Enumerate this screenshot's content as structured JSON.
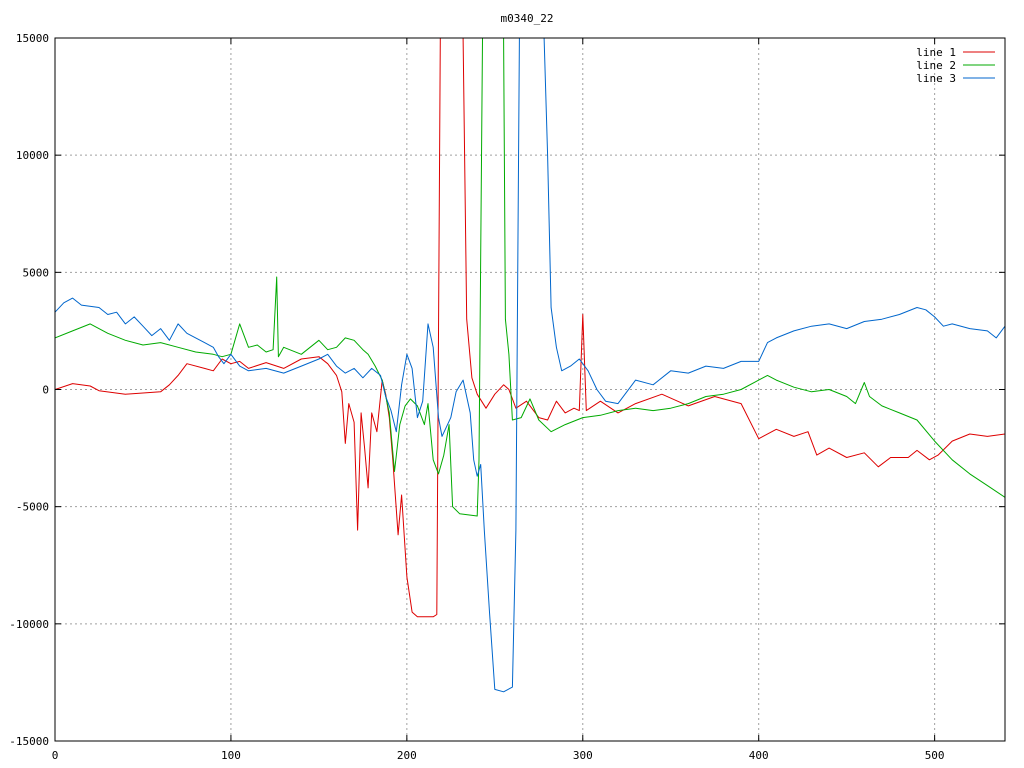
{
  "chart_data": {
    "type": "line",
    "title": "m0340_22",
    "xlabel": "",
    "ylabel": "",
    "xlim": [
      0,
      540
    ],
    "ylim": [
      -15000,
      15000
    ],
    "x_ticks": [
      0,
      100,
      200,
      300,
      400,
      500
    ],
    "y_ticks": [
      -15000,
      -10000,
      -5000,
      0,
      5000,
      10000,
      15000
    ],
    "x_tick_labels": [
      "0",
      "100",
      "200",
      "300",
      "400",
      "500"
    ],
    "y_tick_labels": [
      "-15000",
      "-10000",
      "-5000",
      "0",
      "5000",
      "10000",
      "15000"
    ],
    "grid": true,
    "legend_position": "top-right",
    "series": [
      {
        "name": "line 1",
        "color": "#dd0000",
        "points": [
          [
            0,
            0
          ],
          [
            10,
            250
          ],
          [
            20,
            150
          ],
          [
            25,
            -50
          ],
          [
            40,
            -200
          ],
          [
            50,
            -150
          ],
          [
            60,
            -100
          ],
          [
            65,
            200
          ],
          [
            70,
            600
          ],
          [
            75,
            1100
          ],
          [
            85,
            900
          ],
          [
            90,
            800
          ],
          [
            95,
            1300
          ],
          [
            100,
            1100
          ],
          [
            105,
            1200
          ],
          [
            110,
            900
          ],
          [
            120,
            1150
          ],
          [
            130,
            900
          ],
          [
            140,
            1300
          ],
          [
            150,
            1400
          ],
          [
            155,
            1100
          ],
          [
            160,
            600
          ],
          [
            163,
            -100
          ],
          [
            165,
            -2300
          ],
          [
            167,
            -600
          ],
          [
            170,
            -1400
          ],
          [
            172,
            -6000
          ],
          [
            174,
            -1000
          ],
          [
            176,
            -2500
          ],
          [
            178,
            -4200
          ],
          [
            180,
            -1000
          ],
          [
            183,
            -1800
          ],
          [
            186,
            400
          ],
          [
            188,
            -200
          ],
          [
            190,
            -1200
          ],
          [
            192,
            -3000
          ],
          [
            195,
            -6200
          ],
          [
            197,
            -4500
          ],
          [
            200,
            -8000
          ],
          [
            203,
            -9500
          ],
          [
            206,
            -9700
          ],
          [
            215,
            -9700
          ],
          [
            217,
            -9600
          ],
          [
            219,
            15000
          ],
          [
            232,
            15000
          ],
          [
            234,
            3000
          ],
          [
            237,
            500
          ],
          [
            240,
            -200
          ],
          [
            245,
            -800
          ],
          [
            250,
            -200
          ],
          [
            255,
            200
          ],
          [
            258,
            0
          ],
          [
            262,
            -800
          ],
          [
            268,
            -500
          ],
          [
            275,
            -1200
          ],
          [
            280,
            -1300
          ],
          [
            285,
            -500
          ],
          [
            290,
            -1000
          ],
          [
            295,
            -800
          ],
          [
            298,
            -900
          ],
          [
            300,
            3200
          ],
          [
            302,
            -900
          ],
          [
            310,
            -500
          ],
          [
            320,
            -1000
          ],
          [
            330,
            -600
          ],
          [
            345,
            -200
          ],
          [
            360,
            -700
          ],
          [
            375,
            -300
          ],
          [
            390,
            -600
          ],
          [
            400,
            -2100
          ],
          [
            410,
            -1700
          ],
          [
            420,
            -2000
          ],
          [
            428,
            -1800
          ],
          [
            433,
            -2800
          ],
          [
            440,
            -2500
          ],
          [
            450,
            -2900
          ],
          [
            460,
            -2700
          ],
          [
            468,
            -3300
          ],
          [
            475,
            -2900
          ],
          [
            485,
            -2900
          ],
          [
            490,
            -2600
          ],
          [
            497,
            -3000
          ],
          [
            502,
            -2800
          ],
          [
            510,
            -2200
          ],
          [
            520,
            -1900
          ],
          [
            530,
            -2000
          ],
          [
            540,
            -1900
          ]
        ]
      },
      {
        "name": "line 2",
        "color": "#00aa00",
        "points": [
          [
            0,
            2200
          ],
          [
            10,
            2500
          ],
          [
            20,
            2800
          ],
          [
            30,
            2400
          ],
          [
            40,
            2100
          ],
          [
            50,
            1900
          ],
          [
            60,
            2000
          ],
          [
            70,
            1800
          ],
          [
            80,
            1600
          ],
          [
            90,
            1500
          ],
          [
            95,
            1400
          ],
          [
            100,
            1500
          ],
          [
            105,
            2800
          ],
          [
            110,
            1800
          ],
          [
            115,
            1900
          ],
          [
            120,
            1600
          ],
          [
            124,
            1700
          ],
          [
            126,
            4800
          ],
          [
            127,
            1400
          ],
          [
            130,
            1800
          ],
          [
            140,
            1500
          ],
          [
            150,
            2100
          ],
          [
            155,
            1700
          ],
          [
            160,
            1800
          ],
          [
            165,
            2200
          ],
          [
            170,
            2100
          ],
          [
            175,
            1700
          ],
          [
            178,
            1500
          ],
          [
            182,
            1000
          ],
          [
            186,
            400
          ],
          [
            190,
            -1000
          ],
          [
            193,
            -3500
          ],
          [
            196,
            -1500
          ],
          [
            199,
            -700
          ],
          [
            202,
            -400
          ],
          [
            206,
            -700
          ],
          [
            210,
            -1500
          ],
          [
            212,
            -600
          ],
          [
            215,
            -3000
          ],
          [
            218,
            -3600
          ],
          [
            221,
            -2800
          ],
          [
            224,
            -1500
          ],
          [
            226,
            -5000
          ],
          [
            230,
            -5300
          ],
          [
            240,
            -5400
          ],
          [
            241,
            -3000
          ],
          [
            243,
            15000
          ],
          [
            255,
            15000
          ],
          [
            256,
            3000
          ],
          [
            258,
            1500
          ],
          [
            260,
            -1300
          ],
          [
            265,
            -1200
          ],
          [
            270,
            -400
          ],
          [
            275,
            -1300
          ],
          [
            282,
            -1800
          ],
          [
            290,
            -1500
          ],
          [
            300,
            -1200
          ],
          [
            310,
            -1100
          ],
          [
            320,
            -900
          ],
          [
            330,
            -800
          ],
          [
            340,
            -900
          ],
          [
            350,
            -800
          ],
          [
            360,
            -600
          ],
          [
            370,
            -300
          ],
          [
            380,
            -200
          ],
          [
            390,
            0
          ],
          [
            400,
            400
          ],
          [
            405,
            600
          ],
          [
            410,
            400
          ],
          [
            420,
            100
          ],
          [
            430,
            -100
          ],
          [
            440,
            0
          ],
          [
            450,
            -300
          ],
          [
            455,
            -600
          ],
          [
            460,
            300
          ],
          [
            463,
            -300
          ],
          [
            470,
            -700
          ],
          [
            480,
            -1000
          ],
          [
            490,
            -1300
          ],
          [
            500,
            -2200
          ],
          [
            510,
            -3000
          ],
          [
            520,
            -3600
          ],
          [
            530,
            -4100
          ],
          [
            540,
            -4600
          ]
        ]
      },
      {
        "name": "line 3",
        "color": "#0066cc",
        "points": [
          [
            0,
            3300
          ],
          [
            5,
            3700
          ],
          [
            10,
            3900
          ],
          [
            15,
            3600
          ],
          [
            25,
            3500
          ],
          [
            30,
            3200
          ],
          [
            35,
            3300
          ],
          [
            40,
            2800
          ],
          [
            45,
            3100
          ],
          [
            50,
            2700
          ],
          [
            55,
            2300
          ],
          [
            60,
            2600
          ],
          [
            65,
            2100
          ],
          [
            70,
            2800
          ],
          [
            75,
            2400
          ],
          [
            80,
            2200
          ],
          [
            85,
            2000
          ],
          [
            90,
            1800
          ],
          [
            93,
            1400
          ],
          [
            96,
            1100
          ],
          [
            100,
            1500
          ],
          [
            105,
            1000
          ],
          [
            110,
            800
          ],
          [
            120,
            900
          ],
          [
            130,
            700
          ],
          [
            140,
            1000
          ],
          [
            150,
            1300
          ],
          [
            155,
            1500
          ],
          [
            160,
            1000
          ],
          [
            165,
            700
          ],
          [
            170,
            900
          ],
          [
            175,
            500
          ],
          [
            180,
            900
          ],
          [
            185,
            600
          ],
          [
            188,
            -300
          ],
          [
            191,
            -900
          ],
          [
            194,
            -1800
          ],
          [
            197,
            200
          ],
          [
            200,
            1500
          ],
          [
            203,
            900
          ],
          [
            206,
            -1200
          ],
          [
            209,
            -500
          ],
          [
            212,
            2800
          ],
          [
            215,
            1800
          ],
          [
            218,
            -1200
          ],
          [
            220,
            -2000
          ],
          [
            225,
            -1200
          ],
          [
            228,
            -100
          ],
          [
            232,
            400
          ],
          [
            236,
            -1000
          ],
          [
            238,
            -3000
          ],
          [
            240,
            -3700
          ],
          [
            242,
            -3200
          ],
          [
            244,
            -6000
          ],
          [
            247,
            -9500
          ],
          [
            250,
            -12800
          ],
          [
            255,
            -12900
          ],
          [
            260,
            -12700
          ],
          [
            262,
            -6000
          ],
          [
            264,
            15000
          ],
          [
            278,
            15000
          ],
          [
            280,
            10000
          ],
          [
            282,
            3500
          ],
          [
            285,
            1800
          ],
          [
            288,
            800
          ],
          [
            293,
            1000
          ],
          [
            298,
            1300
          ],
          [
            303,
            800
          ],
          [
            308,
            0
          ],
          [
            313,
            -500
          ],
          [
            320,
            -600
          ],
          [
            330,
            400
          ],
          [
            340,
            200
          ],
          [
            350,
            800
          ],
          [
            360,
            700
          ],
          [
            370,
            1000
          ],
          [
            380,
            900
          ],
          [
            390,
            1200
          ],
          [
            400,
            1200
          ],
          [
            405,
            2000
          ],
          [
            410,
            2200
          ],
          [
            420,
            2500
          ],
          [
            430,
            2700
          ],
          [
            440,
            2800
          ],
          [
            450,
            2600
          ],
          [
            460,
            2900
          ],
          [
            470,
            3000
          ],
          [
            480,
            3200
          ],
          [
            490,
            3500
          ],
          [
            495,
            3400
          ],
          [
            500,
            3100
          ],
          [
            505,
            2700
          ],
          [
            510,
            2800
          ],
          [
            520,
            2600
          ],
          [
            530,
            2500
          ],
          [
            535,
            2200
          ],
          [
            540,
            2700
          ]
        ]
      }
    ]
  }
}
